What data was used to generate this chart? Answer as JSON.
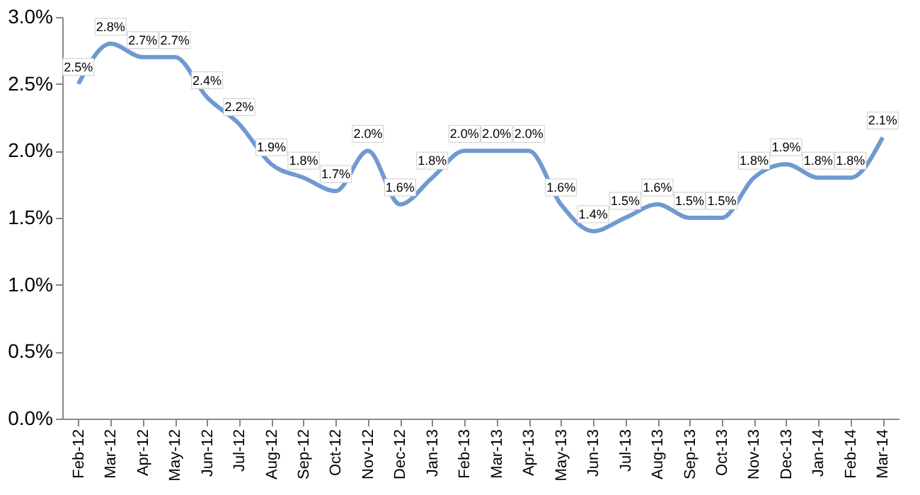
{
  "chart_data": {
    "type": "line",
    "categories": [
      "Feb-12",
      "Mar-12",
      "Apr-12",
      "May-12",
      "Jun-12",
      "Jul-12",
      "Aug-12",
      "Sep-12",
      "Oct-12",
      "Nov-12",
      "Dec-12",
      "Jan-13",
      "Feb-13",
      "Mar-13",
      "Apr-13",
      "May-13",
      "Jun-13",
      "Jul-13",
      "Aug-13",
      "Sep-13",
      "Oct-13",
      "Nov-13",
      "Dec-13",
      "Jan-14",
      "Feb-14",
      "Mar-14"
    ],
    "series": [
      {
        "color": "#6f9ad0",
        "values": [
          2.5,
          2.8,
          2.7,
          2.7,
          2.4,
          2.2,
          1.9,
          1.8,
          1.7,
          2.0,
          1.6,
          1.8,
          2.0,
          2.0,
          2.0,
          1.6,
          1.4,
          1.5,
          1.6,
          1.5,
          1.5,
          1.8,
          1.9,
          1.8,
          1.8,
          2.1
        ],
        "value_labels": [
          "2.5%",
          "2.8%",
          "2.7%",
          "2.7%",
          "2.4%",
          "2.2%",
          "1.9%",
          "1.8%",
          "1.7%",
          "2.0%",
          "1.6%",
          "1.8%",
          "2.0%",
          "2.0%",
          "2.0%",
          "1.6%",
          "1.4%",
          "1.5%",
          "1.6%",
          "1.5%",
          "1.5%",
          "1.8%",
          "1.9%",
          "1.8%",
          "1.8%",
          "2.1%"
        ]
      }
    ],
    "ylim": [
      0,
      3
    ],
    "yticks": [
      {
        "value": 0,
        "label": "0.0%"
      },
      {
        "value": 0.5,
        "label": "0.5%"
      },
      {
        "value": 1,
        "label": "1.0%"
      },
      {
        "value": 1.5,
        "label": "1.5%"
      },
      {
        "value": 2,
        "label": "2.0%"
      },
      {
        "value": 2.5,
        "label": "2.5%"
      },
      {
        "value": 3,
        "label": "3.0%"
      }
    ],
    "grid": false,
    "marker": "none",
    "line_style": "solid"
  }
}
